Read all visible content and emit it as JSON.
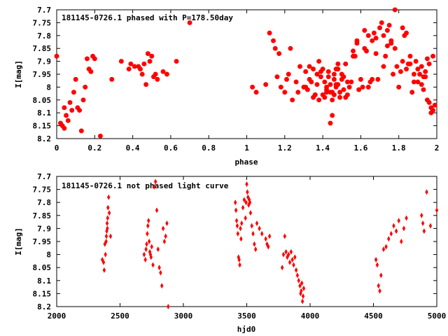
{
  "chart_data": [
    {
      "type": "scatter",
      "title": "181145-0726.1 phased with P=178.50day",
      "xlabel": "phase",
      "ylabel": "I[mag]",
      "xlim": [
        0,
        2
      ],
      "ylim": [
        8.2,
        7.7
      ],
      "y_inverted": true,
      "x_ticks": [
        "0",
        "0.2",
        "0.4",
        "0.6",
        "0.8",
        "1",
        "1.2",
        "1.4",
        "1.6",
        "1.8",
        "2"
      ],
      "y_ticks": [
        "7.7",
        "7.75",
        "7.8",
        "7.85",
        "7.9",
        "7.95",
        "8",
        "8.05",
        "8.1",
        "8.15",
        "8.2"
      ],
      "marker": "filled-square",
      "color": "#ff0000",
      "series": [
        {
          "x": [
            0.0,
            0.02,
            0.03,
            0.04,
            0.04,
            0.05,
            0.06,
            0.07,
            0.08,
            0.09,
            0.1,
            0.11,
            0.12,
            0.13,
            0.14,
            0.15,
            0.16,
            0.17,
            0.18,
            0.19,
            0.2,
            0.23,
            0.29,
            0.34,
            0.38,
            0.39,
            0.41,
            0.43,
            0.44,
            0.45,
            0.46,
            0.47,
            0.48,
            0.49,
            0.5,
            0.51,
            0.52,
            0.53,
            0.56,
            0.58,
            0.63,
            0.7,
            1.03,
            1.05,
            1.1,
            1.12,
            1.14,
            1.15,
            1.16,
            1.17,
            1.18,
            1.2,
            1.21,
            1.22,
            1.23,
            1.24,
            1.26,
            1.27,
            1.28,
            1.3,
            1.31,
            1.32,
            1.33,
            1.34,
            1.35,
            1.36,
            1.37,
            1.38,
            1.39,
            1.4,
            1.41,
            1.42,
            1.43,
            1.44,
            1.45,
            1.46,
            1.47,
            1.48,
            1.49,
            1.5,
            1.51,
            1.52,
            1.53,
            1.54,
            1.55,
            1.56,
            1.57,
            1.58,
            1.59,
            1.6,
            1.61,
            1.62,
            1.63,
            1.64,
            1.65,
            1.66,
            1.67,
            1.68,
            1.69,
            1.7,
            1.71,
            1.72,
            1.73,
            1.74,
            1.75,
            1.76,
            1.77,
            1.78,
            1.79,
            1.8,
            1.81,
            1.82,
            1.83,
            1.84,
            1.85,
            1.86,
            1.87,
            1.88,
            1.89,
            1.9,
            1.91,
            1.92,
            1.93,
            1.94,
            1.95,
            1.96,
            1.97,
            1.98,
            1.99,
            1.4,
            1.42,
            1.44,
            1.46,
            1.48,
            1.5,
            1.45,
            1.47,
            1.43,
            1.41,
            1.38,
            1.36,
            1.49,
            1.51,
            1.53,
            1.46,
            1.44,
            1.42,
            1.47,
            1.45,
            1.52,
            1.48,
            1.39,
            1.37,
            1.35,
            1.33,
            1.31,
            1.56,
            1.58,
            1.62,
            1.64,
            1.66,
            1.68,
            1.72,
            1.74,
            1.76,
            1.78,
            1.82,
            1.84,
            1.86,
            1.88,
            1.92,
            1.94,
            1.96,
            1.98,
            1.9,
            1.93,
            1.95,
            1.97
          ],
          "y": [
            7.88,
            8.14,
            8.15,
            8.08,
            8.16,
            8.11,
            8.13,
            8.06,
            8.09,
            8.02,
            7.97,
            8.08,
            8.09,
            8.17,
            8.05,
            8.0,
            7.89,
            7.93,
            7.94,
            7.88,
            7.89,
            8.19,
            7.97,
            7.9,
            7.93,
            7.91,
            7.92,
            7.92,
            7.93,
            7.95,
            7.91,
            7.99,
            7.87,
            7.9,
            7.88,
            7.96,
            7.95,
            7.97,
            7.94,
            7.95,
            7.9,
            7.75,
            8.0,
            8.02,
            7.99,
            7.79,
            7.82,
            7.85,
            7.96,
            7.87,
            8.0,
            8.02,
            7.97,
            7.95,
            7.85,
            8.05,
            7.98,
            8.02,
            7.92,
            8.0,
            7.94,
            8.01,
            7.92,
            7.98,
            8.04,
            8.03,
            7.99,
            8.05,
            7.96,
            7.93,
            7.98,
            8.0,
            7.94,
            8.02,
            8.11,
            7.97,
            7.99,
            7.91,
            8.02,
            7.95,
            7.96,
            8.04,
            8.03,
            8.0,
            7.98,
            7.86,
            7.88,
            7.82,
            8.01,
            7.97,
            8.0,
            7.85,
            7.86,
            8.0,
            7.98,
            7.97,
            7.79,
            7.81,
            7.97,
            7.77,
            7.75,
            7.8,
            7.88,
            7.78,
            7.76,
            7.83,
            7.95,
            7.85,
            7.92,
            8.0,
            7.94,
            7.9,
            7.8,
            7.93,
            7.91,
            7.88,
            8.02,
            7.98,
            7.9,
            7.93,
            7.95,
            7.92,
            7.96,
            7.94,
            7.89,
            8.06,
            8.08,
            8.09,
            8.07,
            8.03,
            8.01,
            7.99,
            7.95,
            7.93,
            7.97,
            8.02,
            8.0,
            7.96,
            8.04,
            7.9,
            8.03,
            8.04,
            8.01,
            7.98,
            8.03,
            8.14,
            8.02,
            7.93,
            8.05,
            7.91,
            7.99,
            7.94,
            7.95,
            7.93,
            7.97,
            8.0,
            7.88,
            7.83,
            7.78,
            7.8,
            7.82,
            7.87,
            7.92,
            7.84,
            7.82,
            7.7,
            7.77,
            7.79,
            7.91,
            7.95,
            7.99,
            7.96,
            7.91,
            7.88,
            7.98,
            8.01,
            8.05,
            8.1
          ]
        }
      ]
    },
    {
      "type": "scatter",
      "title": "181145-0726.1 not phased light curve",
      "xlabel": "hjd0",
      "ylabel": "I[mag]",
      "xlim": [
        2000,
        5000
      ],
      "ylim": [
        8.2,
        7.7
      ],
      "y_inverted": true,
      "x_ticks": [
        "2000",
        "2500",
        "3000",
        "3500",
        "4000",
        "4500",
        "5000"
      ],
      "y_ticks": [
        "7.7",
        "7.75",
        "7.8",
        "7.85",
        "7.9",
        "7.95",
        "8",
        "8.05",
        "8.1",
        "8.15",
        "8.2"
      ],
      "marker": "diamond",
      "color": "#ff0000",
      "series": [
        {
          "x": [
            2360,
            2370,
            2375,
            2380,
            2385,
            2390,
            2392,
            2395,
            2398,
            2400,
            2402,
            2405,
            2410,
            2415,
            2425,
            2690,
            2700,
            2705,
            2710,
            2715,
            2720,
            2725,
            2730,
            2735,
            2740,
            2745,
            2750,
            2760,
            2770,
            2780,
            2790,
            2800,
            2810,
            2820,
            2830,
            2840,
            2850,
            2860,
            2870,
            2880,
            3410,
            3415,
            3420,
            3425,
            3430,
            3435,
            3440,
            3445,
            3450,
            3455,
            3460,
            3470,
            3480,
            3490,
            3495,
            3500,
            3505,
            3510,
            3515,
            3520,
            3525,
            3530,
            3540,
            3550,
            3560,
            3570,
            3580,
            3600,
            3620,
            3650,
            3660,
            3670,
            3680,
            3780,
            3790,
            3800,
            3810,
            3820,
            3830,
            3840,
            3850,
            3860,
            3870,
            3880,
            3890,
            3900,
            3910,
            3920,
            3925,
            3930,
            3935,
            3940,
            3945,
            3950,
            4520,
            4530,
            4540,
            4550,
            4560,
            4580,
            4600,
            4620,
            4640,
            4660,
            4680,
            4700,
            4720,
            4740,
            4760,
            4880,
            4890,
            4900,
            4920,
            4950,
            5000
          ],
          "y": [
            8.02,
            8.03,
            8.06,
            7.96,
            8.0,
            7.95,
            7.93,
            7.91,
            7.88,
            7.9,
            7.86,
            7.82,
            7.78,
            7.84,
            7.93,
            8.0,
            8.02,
            7.98,
            7.96,
            7.92,
            7.89,
            7.87,
            7.95,
            7.99,
            8.0,
            8.01,
            7.97,
            8.04,
            7.74,
            7.72,
            7.83,
            7.98,
            8.05,
            8.07,
            8.12,
            7.9,
            7.95,
            7.93,
            7.88,
            8.2,
            7.8,
            7.83,
            7.87,
            7.89,
            7.92,
            8.01,
            8.02,
            8.04,
            7.9,
            7.94,
            7.88,
            7.82,
            7.79,
            7.86,
            7.8,
            7.73,
            7.76,
            7.78,
            7.81,
            7.79,
            7.8,
            7.84,
            7.89,
            7.92,
            7.96,
            7.98,
            7.88,
            7.9,
            7.92,
            7.94,
            7.96,
            7.97,
            7.93,
            8.05,
            8.0,
            7.93,
            7.99,
            8.01,
            8.0,
            8.03,
            7.99,
            8.02,
            8.04,
            8.01,
            8.06,
            8.08,
            8.1,
            8.12,
            8.15,
            8.14,
            8.11,
            8.18,
            8.16,
            8.13,
            8.02,
            8.04,
            8.12,
            8.14,
            8.08,
            7.98,
            7.97,
            7.94,
            7.92,
            7.89,
            7.91,
            7.87,
            7.95,
            7.9,
            7.86,
            7.85,
            7.88,
            7.91,
            7.76,
            7.89,
            7.83
          ]
        }
      ]
    }
  ]
}
